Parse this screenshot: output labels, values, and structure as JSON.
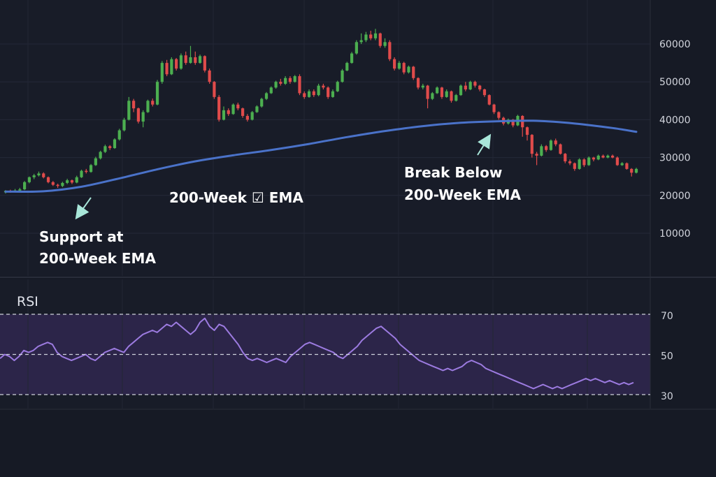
{
  "chart_data": [
    {
      "type": "candlestick",
      "ylim": [
        0,
        70000
      ],
      "y_ticks": [
        60000,
        50000,
        40000,
        30000,
        20000,
        10000
      ],
      "grid": true,
      "colors": {
        "up": "#4caf50",
        "down": "#e04b4b",
        "ema": "#4a72c9",
        "background": "#161a25"
      },
      "candles": [
        [
          20800,
          21200,
          20500,
          21400
        ],
        [
          21200,
          21000,
          20700,
          21500
        ],
        [
          21000,
          21300,
          20800,
          21700
        ],
        [
          21300,
          21600,
          21000,
          22000
        ],
        [
          21600,
          23500,
          21400,
          23800
        ],
        [
          23500,
          24800,
          23200,
          25000
        ],
        [
          24800,
          25300,
          24300,
          25700
        ],
        [
          25300,
          25800,
          25000,
          26300
        ],
        [
          25800,
          24800,
          24500,
          26100
        ],
        [
          24800,
          23500,
          23200,
          25000
        ],
        [
          23500,
          22800,
          22500,
          23800
        ],
        [
          22800,
          22500,
          22000,
          23100
        ],
        [
          22500,
          23300,
          22200,
          23600
        ],
        [
          23300,
          24000,
          23000,
          24400
        ],
        [
          24000,
          23400,
          23000,
          24200
        ],
        [
          23400,
          24800,
          23200,
          25200
        ],
        [
          24800,
          26500,
          24600,
          26800
        ],
        [
          26500,
          26200,
          25800,
          27000
        ],
        [
          26200,
          28000,
          26000,
          28300
        ],
        [
          28000,
          29800,
          27800,
          30200
        ],
        [
          29800,
          31500,
          29500,
          31800
        ],
        [
          31500,
          33000,
          31200,
          33400
        ],
        [
          33000,
          32500,
          32000,
          33300
        ],
        [
          32500,
          34800,
          32300,
          35100
        ],
        [
          34800,
          37200,
          34500,
          37600
        ],
        [
          37200,
          40000,
          36900,
          40500
        ],
        [
          40000,
          45000,
          39800,
          46000
        ],
        [
          45000,
          43000,
          42000,
          45500
        ],
        [
          43000,
          39500,
          39000,
          43200
        ],
        [
          39500,
          42000,
          38000,
          42500
        ],
        [
          42000,
          45000,
          41800,
          45300
        ],
        [
          45000,
          44000,
          43500,
          45600
        ],
        [
          44000,
          50000,
          43800,
          50500
        ],
        [
          50000,
          55000,
          49500,
          55500
        ],
        [
          55000,
          52000,
          51500,
          55800
        ],
        [
          52000,
          56000,
          51800,
          56500
        ],
        [
          56000,
          53500,
          53000,
          56300
        ],
        [
          53500,
          57000,
          53200,
          57500
        ],
        [
          57000,
          55000,
          54500,
          58000
        ],
        [
          55000,
          56500,
          54800,
          59500
        ],
        [
          56500,
          55000,
          54500,
          58000
        ],
        [
          55000,
          56800,
          54800,
          57200
        ],
        [
          56800,
          53000,
          52500,
          57000
        ],
        [
          53000,
          50000,
          49500,
          53500
        ],
        [
          50000,
          46000,
          45500,
          50200
        ],
        [
          46000,
          40000,
          39500,
          46500
        ],
        [
          40000,
          42500,
          39800,
          43500
        ],
        [
          42500,
          41500,
          41000,
          43000
        ],
        [
          41500,
          44000,
          41300,
          44300
        ],
        [
          44000,
          43000,
          42500,
          44500
        ],
        [
          43000,
          41000,
          40500,
          43200
        ],
        [
          41000,
          40000,
          39500,
          41500
        ],
        [
          40000,
          42000,
          39800,
          42300
        ],
        [
          42000,
          43500,
          41800,
          43800
        ],
        [
          43500,
          45500,
          43200,
          45800
        ],
        [
          45500,
          47000,
          45200,
          47300
        ],
        [
          47000,
          48500,
          46800,
          48800
        ],
        [
          48500,
          50000,
          48200,
          50300
        ],
        [
          50000,
          49500,
          49000,
          50800
        ],
        [
          49500,
          51000,
          49200,
          51500
        ],
        [
          51000,
          50000,
          49500,
          51500
        ],
        [
          50000,
          51500,
          49800,
          51800
        ],
        [
          51500,
          47000,
          46500,
          52000
        ],
        [
          47000,
          46000,
          45500,
          47500
        ],
        [
          46000,
          47500,
          45800,
          48000
        ],
        [
          47500,
          46500,
          46000,
          48000
        ],
        [
          46500,
          49000,
          46200,
          49500
        ],
        [
          49000,
          48500,
          48000,
          49500
        ],
        [
          48500,
          46000,
          45500,
          48800
        ],
        [
          46000,
          47500,
          45800,
          48000
        ],
        [
          47500,
          50000,
          47300,
          50300
        ],
        [
          50000,
          53000,
          49800,
          53400
        ],
        [
          53000,
          55000,
          52800,
          55300
        ],
        [
          55000,
          57500,
          54800,
          57900
        ],
        [
          57500,
          60500,
          57200,
          61000
        ],
        [
          60500,
          61000,
          60000,
          62800
        ],
        [
          61000,
          62500,
          60500,
          63200
        ],
        [
          62500,
          61500,
          61000,
          63500
        ],
        [
          61500,
          62800,
          61000,
          64000
        ],
        [
          62800,
          59500,
          59000,
          63000
        ],
        [
          59500,
          60500,
          59000,
          61500
        ],
        [
          60500,
          56000,
          55500,
          61000
        ],
        [
          56000,
          53500,
          53000,
          56500
        ],
        [
          53500,
          55000,
          53200,
          55500
        ],
        [
          55000,
          52500,
          52000,
          55300
        ],
        [
          52500,
          54000,
          52200,
          54300
        ],
        [
          54000,
          51000,
          50500,
          54200
        ],
        [
          51000,
          48500,
          48000,
          51200
        ],
        [
          48500,
          49000,
          48000,
          49500
        ],
        [
          49000,
          45500,
          43000,
          49200
        ],
        [
          45500,
          47000,
          45200,
          47300
        ],
        [
          47000,
          48500,
          46800,
          48800
        ],
        [
          48500,
          46000,
          45500,
          48700
        ],
        [
          46000,
          47500,
          45800,
          48000
        ],
        [
          47500,
          45000,
          44500,
          47700
        ],
        [
          45000,
          46500,
          44800,
          46800
        ],
        [
          46500,
          49000,
          46300,
          49300
        ],
        [
          49000,
          48000,
          47500,
          50000
        ],
        [
          48000,
          50000,
          47800,
          50300
        ],
        [
          50000,
          49000,
          48500,
          50300
        ],
        [
          49000,
          48000,
          47500,
          49200
        ],
        [
          48000,
          46500,
          46000,
          48200
        ],
        [
          46500,
          44000,
          43800,
          46700
        ],
        [
          44000,
          42000,
          41500,
          44200
        ],
        [
          42000,
          40500,
          40000,
          42200
        ],
        [
          40500,
          39000,
          38500,
          40800
        ],
        [
          39000,
          40000,
          38700,
          40300
        ],
        [
          40000,
          38500,
          38000,
          40200
        ],
        [
          38500,
          41000,
          38300,
          41300
        ],
        [
          41000,
          38000,
          35500,
          41200
        ],
        [
          38000,
          36000,
          34500,
          38200
        ],
        [
          36000,
          31000,
          30000,
          36200
        ],
        [
          31000,
          30500,
          28000,
          31500
        ],
        [
          30500,
          33000,
          30300,
          33500
        ],
        [
          33000,
          32000,
          31500,
          33300
        ],
        [
          32000,
          34500,
          31800,
          34800
        ],
        [
          34500,
          33500,
          33000,
          35000
        ],
        [
          33500,
          31000,
          30800,
          33700
        ],
        [
          31000,
          29000,
          28500,
          31200
        ],
        [
          29000,
          28500,
          28000,
          29500
        ],
        [
          28500,
          27000,
          26500,
          28700
        ],
        [
          27000,
          29500,
          26800,
          29800
        ],
        [
          29500,
          28000,
          27500,
          29800
        ],
        [
          28000,
          30000,
          27800,
          30300
        ],
        [
          30000,
          29500,
          29000,
          30200
        ],
        [
          29500,
          30500,
          29300,
          30800
        ],
        [
          30500,
          30000,
          29800,
          30800
        ],
        [
          30000,
          30500,
          29800,
          30800
        ],
        [
          30500,
          30000,
          29800,
          30800
        ],
        [
          30000,
          28000,
          27800,
          30300
        ],
        [
          28000,
          28500,
          27800,
          28800
        ],
        [
          28500,
          27000,
          26800,
          28700
        ],
        [
          27000,
          26000,
          25000,
          27200
        ],
        [
          26000,
          27000,
          25800,
          27300
        ]
      ],
      "ema_200_week": [
        [
          0,
          21000
        ],
        [
          8,
          21100
        ],
        [
          16,
          22300
        ],
        [
          24,
          24500
        ],
        [
          32,
          26900
        ],
        [
          40,
          29000
        ],
        [
          48,
          30600
        ],
        [
          56,
          32000
        ],
        [
          64,
          33600
        ],
        [
          72,
          35400
        ],
        [
          80,
          37000
        ],
        [
          88,
          38300
        ],
        [
          96,
          39200
        ],
        [
          104,
          39600
        ],
        [
          112,
          39700
        ],
        [
          120,
          39000
        ],
        [
          128,
          37800
        ],
        [
          133,
          36800
        ]
      ],
      "annotations": [
        {
          "text": [
            "Support at",
            "200-Week EMA"
          ],
          "arrow": true
        },
        {
          "text": [
            "200-Week ☑ EMA"
          ],
          "arrow": false
        },
        {
          "text": [
            "Break Below",
            "200-Week EMA"
          ],
          "arrow": true
        }
      ]
    },
    {
      "type": "line",
      "label": "RSI",
      "ylim": [
        30,
        70
      ],
      "y_ticks": [
        70,
        50,
        30
      ],
      "reference_lines": [
        70,
        50,
        30
      ],
      "band": [
        30,
        70
      ],
      "colors": {
        "line": "#9c7be0",
        "band": "#2c2549",
        "reference": "#cfd2dc"
      },
      "values": [
        48,
        50,
        49,
        47,
        49,
        52,
        51,
        52,
        54,
        55,
        56,
        55,
        51,
        49,
        48,
        47,
        48,
        49,
        50,
        48,
        47,
        49,
        51,
        52,
        53,
        52,
        51,
        54,
        56,
        58,
        60,
        61,
        62,
        61,
        63,
        65,
        64,
        66,
        64,
        62,
        60,
        62,
        66,
        68,
        64,
        62,
        65,
        64,
        61,
        58,
        55,
        51,
        48,
        47,
        48,
        47,
        46,
        47,
        48,
        47,
        46,
        49,
        51,
        53,
        55,
        56,
        55,
        54,
        53,
        52,
        51,
        49,
        48,
        50,
        52,
        54,
        57,
        59,
        61,
        63,
        64,
        62,
        60,
        58,
        55,
        53,
        51,
        49,
        47,
        46,
        45,
        44,
        43,
        42,
        43,
        42,
        43,
        44,
        46,
        47,
        46,
        45,
        43,
        42,
        41,
        40,
        39,
        38,
        37,
        36,
        35,
        34,
        33,
        34,
        35,
        34,
        33,
        34,
        33,
        34,
        35,
        36,
        37,
        38,
        37,
        38,
        37,
        36,
        37,
        36,
        35,
        36,
        35,
        36
      ]
    }
  ],
  "rsi_title": "RSI"
}
